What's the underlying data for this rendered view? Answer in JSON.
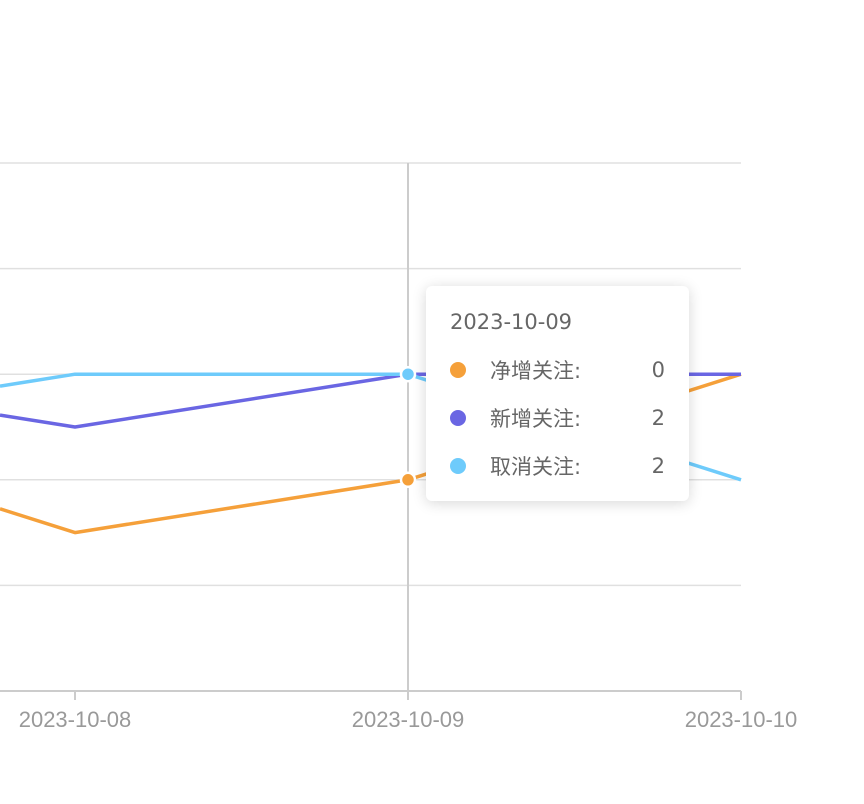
{
  "chart_data": {
    "type": "line",
    "categories": [
      "2023-10-08",
      "2023-10-09",
      "2023-10-10"
    ],
    "series": [
      {
        "name": "净增关注",
        "color": "#f5a03a",
        "values": [
          -1,
          0,
          2
        ]
      },
      {
        "name": "新增关注",
        "color": "#6a66e3",
        "values": [
          1,
          2,
          2
        ]
      },
      {
        "name": "取消关注",
        "color": "#6ecbfb",
        "values": [
          2,
          2,
          0
        ]
      }
    ],
    "ylim": [
      -4,
      6
    ],
    "grid": true,
    "tooltip": {
      "title": "2023-10-09",
      "items": [
        {
          "name": "净增关注:",
          "value": "0",
          "color": "#f5a03a"
        },
        {
          "name": "新增关注:",
          "value": "2",
          "color": "#6a66e3"
        },
        {
          "name": "取消关注:",
          "value": "2",
          "color": "#6ecbfb"
        }
      ]
    }
  }
}
